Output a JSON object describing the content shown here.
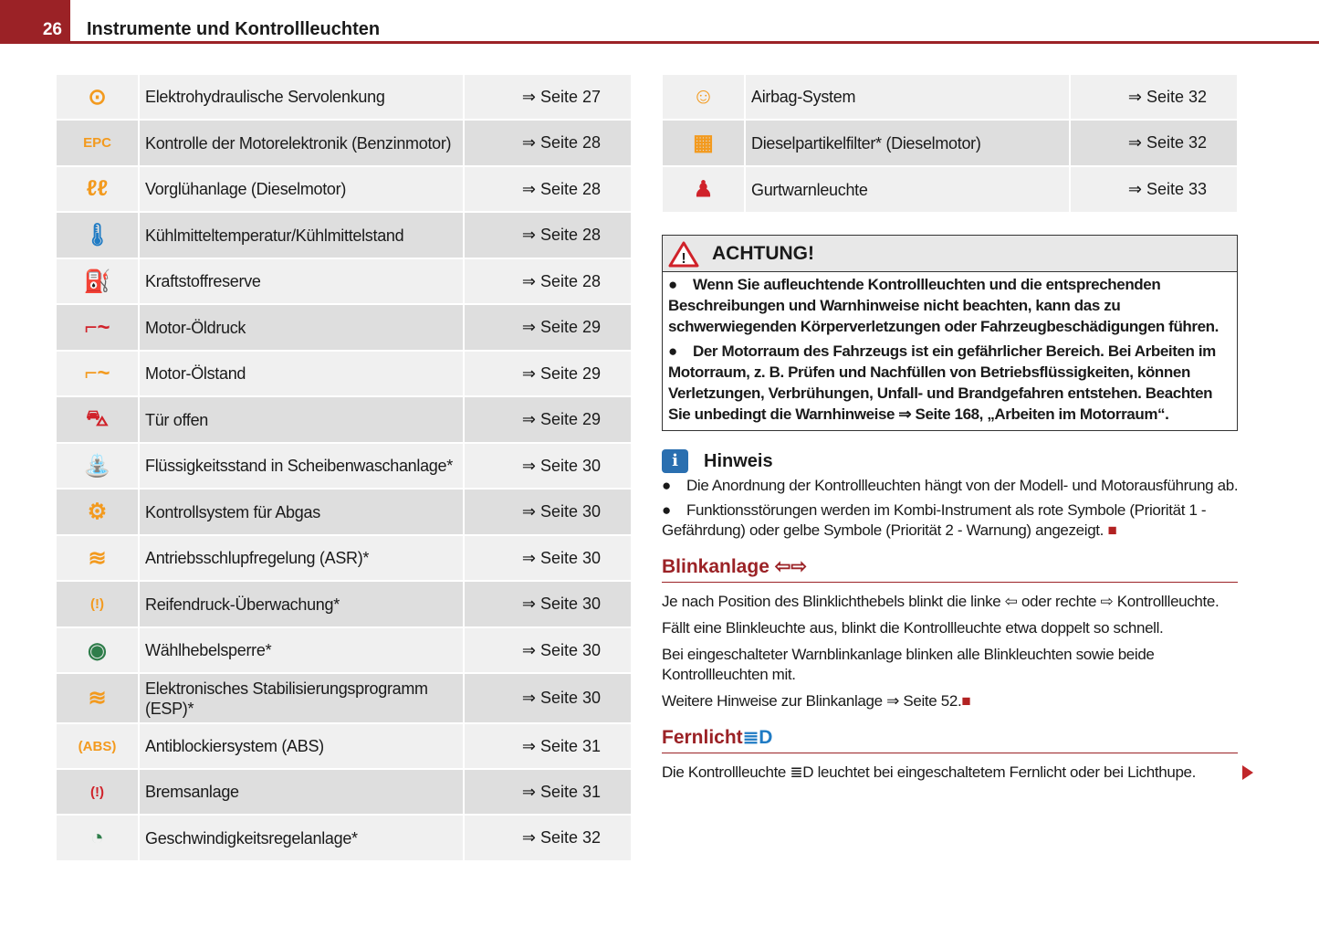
{
  "header": {
    "page_number": "26",
    "chapter": "Instrumente und Kontrollleuchten"
  },
  "colors": {
    "brand_red": "#9b2226",
    "warning_yellow": "#f39a1e",
    "blue": "#1f7bc4",
    "red": "#d0222a",
    "green": "#2e7d4a"
  },
  "left_table": [
    {
      "icon": "steering-wheel-icon",
      "glyph": "⊙",
      "color": "#f39a1e",
      "label": "Elektrohydraulische Servolenkung",
      "page": "⇒ Seite 27"
    },
    {
      "icon": "epc-icon",
      "glyph": "EPC",
      "color": "#f39a1e",
      "label": "Kontrolle der Motorelektronik (Benzinmotor)",
      "page": "⇒ Seite 28"
    },
    {
      "icon": "glow-plug-icon",
      "glyph": "ℓℓ",
      "color": "#f39a1e",
      "label": "Vorglühanlage (Dieselmotor)",
      "page": "⇒ Seite 28"
    },
    {
      "icon": "coolant-icon",
      "glyph": "🌡",
      "color": "#1f7bc4",
      "label": "Kühlmitteltemperatur/Kühlmittelstand",
      "page": "⇒ Seite 28"
    },
    {
      "icon": "fuel-icon",
      "glyph": "⛽",
      "color": "#f39a1e",
      "label": "Kraftstoffreserve",
      "page": "⇒ Seite 28"
    },
    {
      "icon": "oil-pressure-icon",
      "glyph": "⌐~",
      "color": "#d0222a",
      "label": "Motor-Öldruck",
      "page": "⇒ Seite 29"
    },
    {
      "icon": "oil-level-icon",
      "glyph": "⌐~",
      "color": "#f39a1e",
      "label": "Motor-Ölstand",
      "page": "⇒ Seite 29"
    },
    {
      "icon": "door-open-icon",
      "glyph": "⛍",
      "color": "#d0222a",
      "label": "Tür offen",
      "page": "⇒ Seite 29"
    },
    {
      "icon": "washer-fluid-icon",
      "glyph": "⛲",
      "color": "#f39a1e",
      "label": "Flüssigkeitsstand in Scheibenwaschanlage*",
      "page": "⇒ Seite 30"
    },
    {
      "icon": "engine-icon",
      "glyph": "⚙",
      "color": "#f39a1e",
      "label": "Kontrollsystem für Abgas",
      "page": "⇒ Seite 30"
    },
    {
      "icon": "asr-off-icon",
      "glyph": "≋",
      "color": "#f39a1e",
      "label": "Antriebsschlupfregelung (ASR)*",
      "page": "⇒ Seite 30"
    },
    {
      "icon": "tire-pressure-icon",
      "glyph": "(!)",
      "color": "#f39a1e",
      "label": "Reifendruck-Überwachung*",
      "page": "⇒ Seite 30"
    },
    {
      "icon": "selector-lever-icon",
      "glyph": "◉",
      "color": "#2e7d4a",
      "label": "Wählhebelsperre*",
      "page": "⇒ Seite 30"
    },
    {
      "icon": "esp-icon",
      "glyph": "≋",
      "color": "#f39a1e",
      "label": "Elektronisches Stabilisierungsprogramm (ESP)*",
      "page": "⇒ Seite 30"
    },
    {
      "icon": "abs-icon",
      "glyph": "(ABS)",
      "color": "#f39a1e",
      "label": "Antiblockiersystem (ABS)",
      "page": "⇒ Seite 31"
    },
    {
      "icon": "brake-icon",
      "glyph": "(!)",
      "color": "#d0222a",
      "label": "Bremsanlage",
      "page": "⇒ Seite 31"
    },
    {
      "icon": "cruise-control-icon",
      "glyph": "◔",
      "color": "#2e7d4a",
      "label": "Geschwindigkeitsregelanlage*",
      "page": "⇒ Seite 32"
    }
  ],
  "right_table": [
    {
      "icon": "airbag-icon",
      "glyph": "☺",
      "color": "#f39a1e",
      "label": "Airbag-System",
      "page": "⇒ Seite 32"
    },
    {
      "icon": "particle-filter-icon",
      "glyph": "▦",
      "color": "#f39a1e",
      "label": "Dieselpartikelfilter* (Dieselmotor)",
      "page": "⇒ Seite 32"
    },
    {
      "icon": "seatbelt-icon",
      "glyph": "♟",
      "color": "#d0222a",
      "label": "Gurtwarnleuchte",
      "page": "⇒ Seite 33"
    }
  ],
  "warning": {
    "title": "ACHTUNG!",
    "items": [
      "Wenn Sie aufleuchtende Kontrollleuchten und die entsprechenden Beschreibungen und Warnhinweise nicht beachten, kann das zu schwerwiegenden Körperverletzungen oder Fahrzeugbeschädigungen führen.",
      "Der Motorraum des Fahrzeugs ist ein gefährlicher Bereich. Bei Arbeiten im Motorraum, z. B. Prüfen und Nachfüllen von Betriebsflüssigkeiten, können Verletzungen, Verbrühungen, Unfall- und Brandgefahren entstehen. Beachten Sie unbedingt die Warnhinweise ⇒ Seite 168, „Arbeiten im Motorraum“."
    ]
  },
  "note": {
    "title": "Hinweis",
    "items": [
      "Die Anordnung der Kontrollleuchten hängt von der Modell- und Motorausführung ab.",
      "Funktionsstörungen werden im Kombi-Instrument als rote Symbole (Priorität 1 - Gefährdung) oder gelbe Symbole (Priorität 2 - Warnung) angezeigt."
    ]
  },
  "blink": {
    "title": "Blinkanlage",
    "title_icon": "⇦⇨",
    "paragraphs": [
      "Je nach Position des Blinklichthebels blinkt die linke ⇦ oder rechte ⇨ Kontrollleuchte.",
      "Fällt eine Blinkleuchte aus, blinkt die Kontrollleuchte etwa doppelt so schnell.",
      "Bei eingeschalteter Warnblinkanlage blinken alle Blinkleuchten sowie beide Kontrollleuchten mit.",
      "Weitere Hinweise zur Blinkanlage ⇒ Seite 52."
    ]
  },
  "fern": {
    "title": "Fernlicht",
    "title_icon": "≣D",
    "paragraphs": [
      "Die Kontrollleuchte ≣D leuchtet bei eingeschaltetem Fernlicht oder bei Lichthupe."
    ]
  },
  "end_square": "■"
}
